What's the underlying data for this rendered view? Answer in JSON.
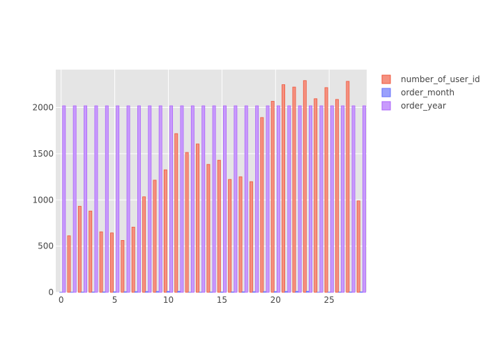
{
  "chart_data": {
    "type": "bar",
    "x": [
      0,
      1,
      2,
      3,
      4,
      5,
      6,
      7,
      8,
      9,
      10,
      11,
      12,
      13,
      14,
      15,
      16,
      17,
      18,
      19,
      20,
      21,
      22,
      23,
      24,
      25,
      26,
      27,
      28
    ],
    "series": [
      {
        "name": "number_of_user_id",
        "color": "#ef553b",
        "values": [
          0,
          612,
          932,
          880,
          655,
          643,
          562,
          706,
          1034,
          1214,
          1326,
          1718,
          1514,
          1606,
          1385,
          1430,
          1222,
          1251,
          1198,
          1892,
          2068,
          2248,
          2222,
          2292,
          2096,
          2216,
          2088,
          2284,
          990
        ]
      },
      {
        "name": "order_month",
        "color": "#636efa",
        "values": [
          1,
          2,
          3,
          4,
          5,
          6,
          7,
          8,
          9,
          10,
          11,
          12,
          1,
          2,
          3,
          4,
          5,
          6,
          7,
          8,
          9,
          10,
          11,
          12,
          1,
          2,
          3,
          4,
          5
        ]
      },
      {
        "name": "order_year",
        "color": "#ab63fa",
        "values": [
          2019,
          2019,
          2019,
          2019,
          2019,
          2019,
          2019,
          2019,
          2019,
          2019,
          2019,
          2019,
          2019,
          2019,
          2019,
          2019,
          2019,
          2019,
          2019,
          2019,
          2019,
          2019,
          2019,
          2019,
          2019,
          2019,
          2019,
          2019,
          2019
        ]
      }
    ],
    "x_ticks": [
      0,
      5,
      10,
      15,
      20,
      25
    ],
    "y_ticks": [
      0,
      500,
      1000,
      1500,
      2000
    ],
    "xlim": [
      -0.5,
      28.5
    ],
    "ylim": [
      0,
      2411
    ],
    "title": "",
    "xlabel": "",
    "ylabel": "",
    "grid": true,
    "legend_position": "top-right",
    "plot_background": "#e5e5e5"
  }
}
